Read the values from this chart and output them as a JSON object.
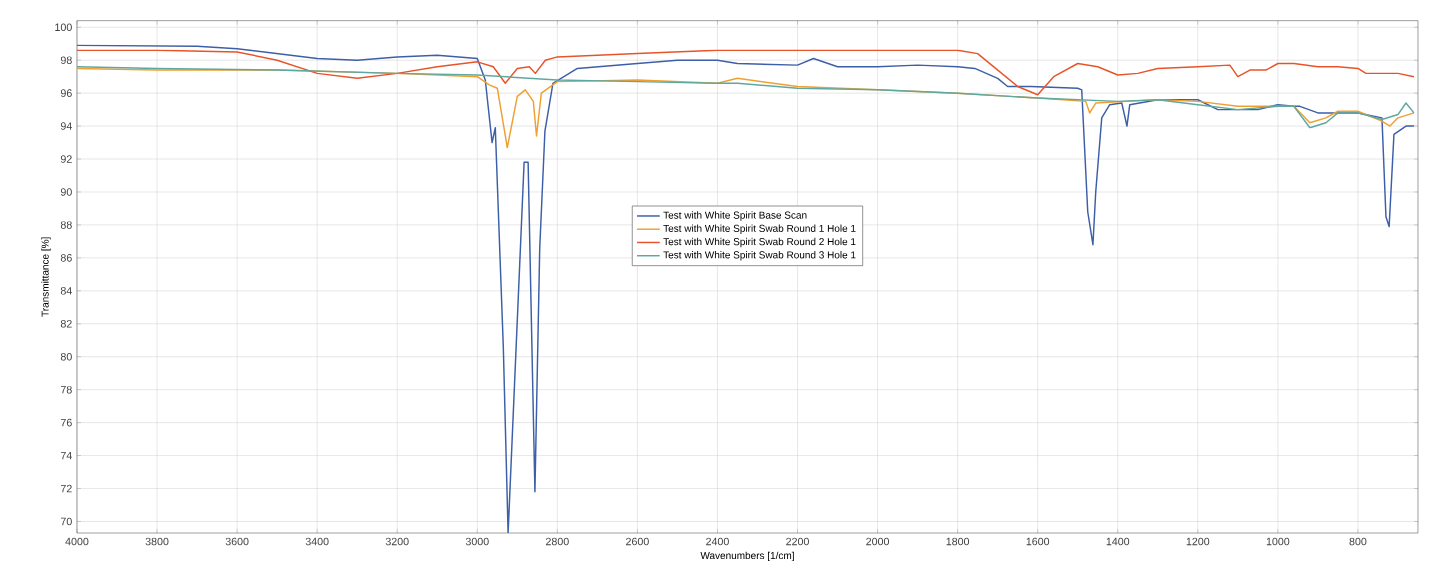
{
  "chart_data": {
    "type": "line",
    "xlabel": "Wavenumbers [1/cm]",
    "ylabel": "Transmittance [%]",
    "xlim": [
      4000,
      650
    ],
    "ylim": [
      69.3,
      100.4
    ],
    "xticks": [
      4000,
      3800,
      3600,
      3400,
      3200,
      3000,
      2800,
      2600,
      2400,
      2200,
      2000,
      1800,
      1600,
      1400,
      1200,
      1000,
      800
    ],
    "yticks": [
      70,
      72,
      74,
      76,
      78,
      80,
      82,
      84,
      86,
      88,
      90,
      92,
      94,
      96,
      98,
      100
    ],
    "grid": true,
    "legend": "center",
    "marker": "none",
    "line_style": "solid",
    "series": [
      {
        "name": "Test with White Spirit Base Scan",
        "color": "#3d5fa8",
        "x": [
          4000,
          3700,
          3600,
          3400,
          3300,
          3200,
          3100,
          3000,
          2980,
          2963,
          2955,
          2935,
          2923,
          2883,
          2873,
          2856,
          2844,
          2831,
          2811,
          2750,
          2600,
          2500,
          2400,
          2350,
          2200,
          2160,
          2100,
          2000,
          1900,
          1800,
          1757,
          1700,
          1675,
          1617,
          1500,
          1490,
          1475,
          1462,
          1455,
          1440,
          1420,
          1390,
          1377,
          1370,
          1300,
          1200,
          1150,
          1050,
          1000,
          960,
          945,
          900,
          850,
          800,
          740,
          730,
          722,
          710,
          680,
          660
        ],
        "values": [
          98.9,
          98.85,
          98.7,
          98.1,
          98.0,
          98.2,
          98.3,
          98.1,
          96.8,
          93.0,
          93.9,
          80.6,
          69.3,
          91.8,
          91.8,
          71.8,
          86.6,
          93.7,
          96.6,
          97.5,
          97.8,
          98.0,
          98.0,
          97.8,
          97.7,
          98.1,
          97.6,
          97.6,
          97.7,
          97.6,
          97.5,
          96.9,
          96.4,
          96.4,
          96.3,
          96.2,
          88.8,
          86.8,
          90.0,
          94.5,
          95.3,
          95.4,
          94.0,
          95.3,
          95.6,
          95.6,
          95.0,
          95.0,
          95.3,
          95.2,
          95.2,
          94.8,
          94.8,
          94.8,
          94.5,
          88.5,
          87.9,
          93.5,
          94.0,
          94.0
        ]
      },
      {
        "name": "Test with White Spirit Swab Round 1 Hole 1",
        "color": "#f0a030",
        "x": [
          4000,
          3800,
          3500,
          3200,
          3000,
          2970,
          2950,
          2925,
          2900,
          2880,
          2860,
          2852,
          2840,
          2800,
          2600,
          2400,
          2350,
          2200,
          2000,
          1800,
          1600,
          1480,
          1470,
          1455,
          1380,
          1300,
          1200,
          1100,
          1000,
          960,
          920,
          880,
          850,
          800,
          740,
          720,
          700,
          660
        ],
        "values": [
          97.5,
          97.4,
          97.4,
          97.2,
          97.0,
          96.5,
          96.3,
          92.7,
          95.8,
          96.2,
          95.5,
          93.4,
          96.0,
          96.7,
          96.8,
          96.6,
          96.9,
          96.4,
          96.2,
          96.0,
          95.7,
          95.5,
          94.8,
          95.4,
          95.5,
          95.6,
          95.5,
          95.2,
          95.2,
          95.2,
          94.2,
          94.5,
          94.9,
          94.9,
          94.3,
          94.0,
          94.5,
          94.8
        ]
      },
      {
        "name": "Test with White Spirit Swab Round 2 Hole 1",
        "color": "#e8542a",
        "x": [
          4000,
          3800,
          3600,
          3500,
          3400,
          3300,
          3200,
          3100,
          3000,
          2960,
          2930,
          2900,
          2870,
          2855,
          2830,
          2800,
          2600,
          2400,
          2200,
          2000,
          1800,
          1750,
          1700,
          1650,
          1600,
          1560,
          1500,
          1450,
          1400,
          1350,
          1300,
          1200,
          1120,
          1100,
          1070,
          1030,
          1000,
          960,
          900,
          850,
          800,
          780,
          700,
          660
        ],
        "values": [
          98.6,
          98.6,
          98.5,
          98.0,
          97.2,
          96.9,
          97.2,
          97.6,
          97.9,
          97.6,
          96.6,
          97.5,
          97.6,
          97.2,
          98.0,
          98.2,
          98.4,
          98.6,
          98.6,
          98.6,
          98.6,
          98.4,
          97.4,
          96.4,
          95.9,
          97.0,
          97.8,
          97.6,
          97.1,
          97.2,
          97.5,
          97.6,
          97.7,
          97.0,
          97.4,
          97.4,
          97.8,
          97.8,
          97.6,
          97.6,
          97.5,
          97.2,
          97.2,
          97.0
        ]
      },
      {
        "name": "Test with White Spirit Swab Round 3 Hole 1",
        "color": "#5fa8a0",
        "x": [
          4000,
          3800,
          3500,
          3200,
          3000,
          2800,
          2600,
          2400,
          2350,
          2200,
          2000,
          1800,
          1600,
          1500,
          1400,
          1300,
          1200,
          1100,
          1000,
          960,
          920,
          880,
          850,
          800,
          740,
          700,
          680,
          660
        ],
        "values": [
          97.6,
          97.5,
          97.4,
          97.2,
          97.1,
          96.8,
          96.7,
          96.6,
          96.6,
          96.3,
          96.2,
          96.0,
          95.7,
          95.6,
          95.5,
          95.6,
          95.3,
          95.0,
          95.2,
          95.2,
          93.9,
          94.2,
          94.8,
          94.8,
          94.4,
          94.7,
          95.4,
          94.8
        ]
      }
    ]
  }
}
